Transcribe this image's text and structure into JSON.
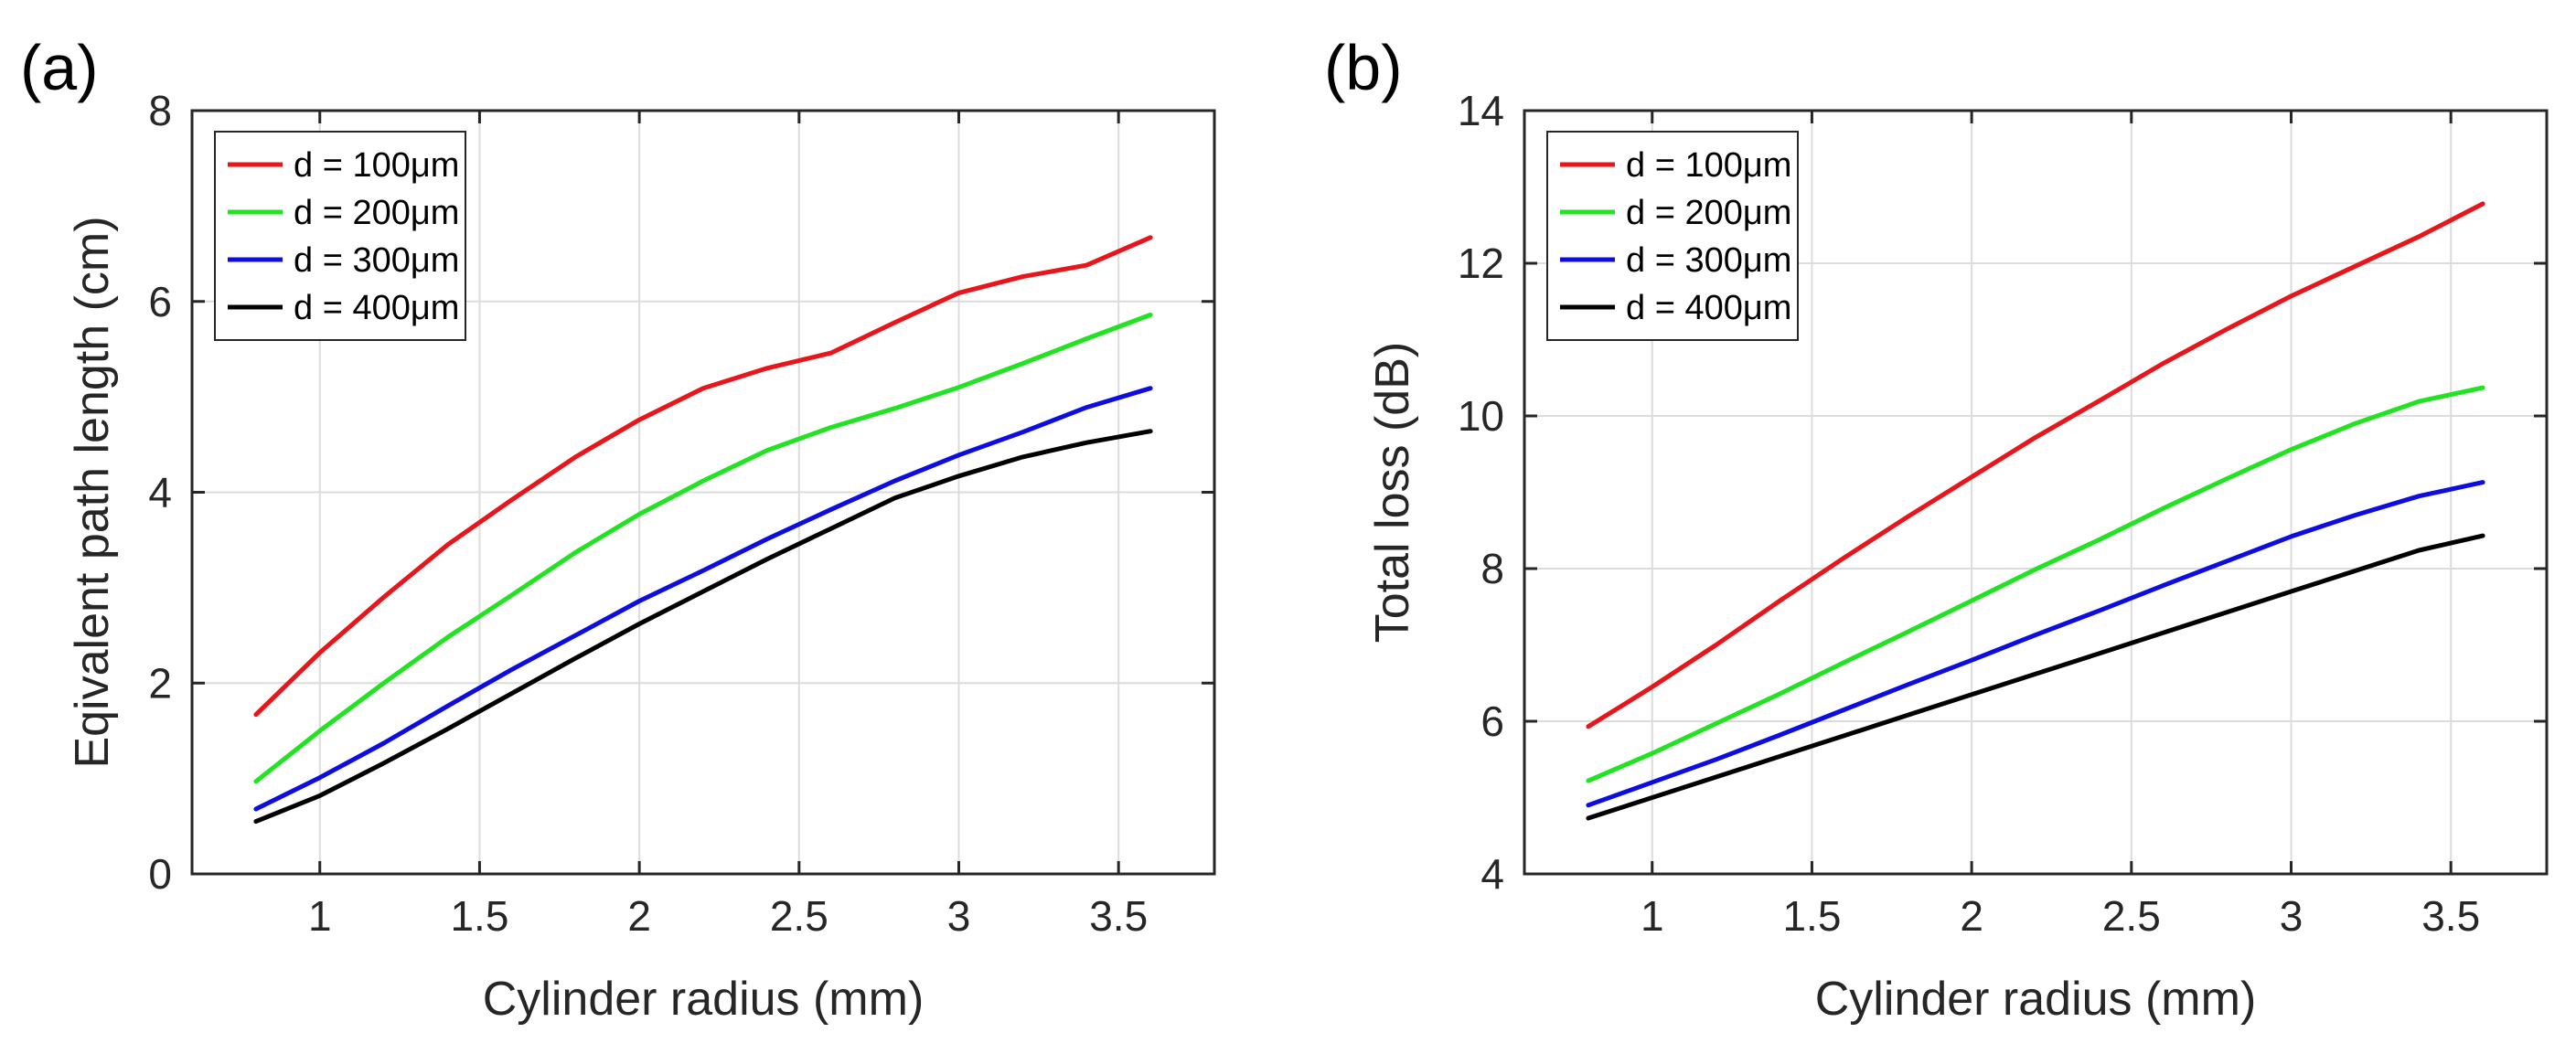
{
  "chart_data": [
    {
      "type": "line",
      "panel_label": "(a)",
      "title": "",
      "xlabel": "Cylinder radius (mm)",
      "ylabel": "Eqivalent path length (cm)",
      "xlim": [
        0.6,
        3.8
      ],
      "ylim": [
        0,
        8
      ],
      "xticks": [
        1,
        1.5,
        2,
        2.5,
        3,
        3.5
      ],
      "yticks": [
        0,
        2,
        4,
        6,
        8
      ],
      "grid": true,
      "legend_position": "top-left",
      "x": [
        0.8,
        1.0,
        1.2,
        1.4,
        1.6,
        1.8,
        2.0,
        2.2,
        2.4,
        2.6,
        2.8,
        3.0,
        3.2,
        3.4,
        3.6
      ],
      "series": [
        {
          "name": "d = 100μm",
          "color": "#e8151b",
          "values": [
            1.67,
            2.32,
            2.9,
            3.45,
            3.92,
            4.37,
            4.76,
            5.09,
            5.3,
            5.46,
            5.78,
            6.09,
            6.26,
            6.38,
            6.67
          ]
        },
        {
          "name": "d = 200μm",
          "color": "#22e322",
          "values": [
            0.97,
            1.5,
            2.0,
            2.48,
            2.92,
            3.37,
            3.77,
            4.12,
            4.44,
            4.68,
            4.88,
            5.1,
            5.35,
            5.61,
            5.86
          ]
        },
        {
          "name": "d = 300μm",
          "color": "#0d0de0",
          "values": [
            0.68,
            1.01,
            1.37,
            1.76,
            2.14,
            2.5,
            2.86,
            3.18,
            3.51,
            3.82,
            4.12,
            4.39,
            4.63,
            4.89,
            5.09
          ]
        },
        {
          "name": "d = 400μm",
          "color": "#000000",
          "values": [
            0.55,
            0.82,
            1.16,
            1.52,
            1.89,
            2.26,
            2.62,
            2.96,
            3.3,
            3.62,
            3.94,
            4.17,
            4.37,
            4.52,
            4.64
          ]
        }
      ]
    },
    {
      "type": "line",
      "panel_label": "(b)",
      "title": "",
      "xlabel": "Cylinder radius (mm)",
      "ylabel": "Total loss (dB)",
      "xlim": [
        0.6,
        3.8
      ],
      "ylim": [
        4,
        14
      ],
      "xticks": [
        1,
        1.5,
        2,
        2.5,
        3,
        3.5
      ],
      "yticks": [
        4,
        6,
        8,
        10,
        12,
        14
      ],
      "grid": true,
      "legend_position": "top-left",
      "x": [
        0.8,
        1.0,
        1.2,
        1.4,
        1.6,
        1.8,
        2.0,
        2.2,
        2.4,
        2.6,
        2.8,
        3.0,
        3.2,
        3.4,
        3.6
      ],
      "series": [
        {
          "name": "d = 100μm",
          "color": "#e8151b",
          "values": [
            5.93,
            6.45,
            7.0,
            7.58,
            8.14,
            8.68,
            9.2,
            9.72,
            10.2,
            10.69,
            11.14,
            11.57,
            11.96,
            12.35,
            12.78
          ]
        },
        {
          "name": "d = 200μm",
          "color": "#22e322",
          "values": [
            5.22,
            5.58,
            5.97,
            6.36,
            6.77,
            7.17,
            7.58,
            7.99,
            8.38,
            8.79,
            9.18,
            9.56,
            9.9,
            10.19,
            10.37
          ]
        },
        {
          "name": "d = 300μm",
          "color": "#0d0de0",
          "values": [
            4.9,
            5.2,
            5.5,
            5.82,
            6.15,
            6.48,
            6.8,
            7.13,
            7.45,
            7.78,
            8.1,
            8.42,
            8.7,
            8.95,
            9.13
          ]
        },
        {
          "name": "d = 400μm",
          "color": "#000000",
          "values": [
            4.73,
            5.0,
            5.27,
            5.54,
            5.81,
            6.08,
            6.35,
            6.62,
            6.89,
            7.16,
            7.43,
            7.7,
            7.97,
            8.24,
            8.43
          ]
        }
      ]
    }
  ]
}
